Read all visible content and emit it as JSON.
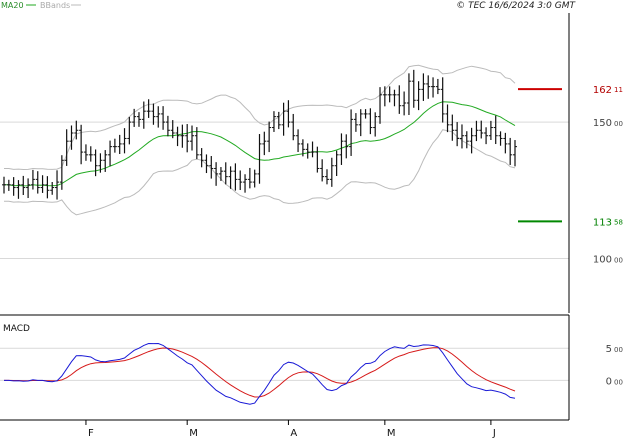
{
  "header": {
    "legend_ma": "MA20",
    "legend_bb": "BBands",
    "copyright": "© TEC 16/6/2024 3:0 GMT"
  },
  "colors": {
    "ma": "#22aa22",
    "bbands": "#bbbbbb",
    "price_bars": "#111111",
    "macd_line": "#1a1ad6",
    "signal_line": "#d61a1a",
    "resistance": "#cc0000",
    "support": "#008800",
    "grid": "#d9d9d9"
  },
  "chart_data": [
    {
      "type": "ohlc",
      "panel": "price",
      "y_ticks": [
        {
          "value": 150,
          "int": "150",
          "dec": "00"
        },
        {
          "value": 100,
          "int": "100",
          "dec": "00"
        }
      ],
      "ylim": [
        80,
        190
      ],
      "levels": [
        {
          "name": "resistance",
          "value": 162.11,
          "int": "162",
          "dec": "11"
        },
        {
          "name": "support",
          "value": 113.58,
          "int": "113",
          "dec": "58"
        }
      ],
      "x_labels": [
        {
          "label": "F",
          "index": 17
        },
        {
          "label": "M",
          "index": 38
        },
        {
          "label": "A",
          "index": 59
        },
        {
          "label": "M",
          "index": 79
        },
        {
          "label": "J",
          "index": 101
        }
      ],
      "close": [
        127,
        127,
        126,
        127,
        126,
        127,
        129,
        126,
        127,
        125,
        126,
        128,
        136,
        143,
        146,
        147,
        139,
        138,
        138,
        134,
        136,
        138,
        141,
        141,
        142,
        144,
        150,
        152,
        151,
        154,
        154,
        152,
        153,
        150,
        147,
        146,
        145,
        145,
        143,
        145,
        138,
        136,
        134,
        133,
        131,
        132,
        130,
        132,
        129,
        128,
        129,
        128,
        131,
        142,
        143,
        148,
        152,
        149,
        154,
        150,
        145,
        142,
        140,
        139,
        139,
        133,
        130,
        129,
        134,
        138,
        143,
        141,
        151,
        149,
        153,
        153,
        148,
        152,
        160,
        160,
        160,
        160,
        156,
        157,
        165,
        158,
        162,
        164,
        163,
        163,
        162,
        153,
        149,
        147,
        144,
        145,
        143,
        145,
        147,
        146,
        145,
        148,
        145,
        144,
        142,
        138,
        141
      ]
    },
    {
      "type": "line",
      "panel": "macd",
      "title": "MACD",
      "y_ticks": [
        {
          "value": 5,
          "int": "5",
          "dec": "00"
        },
        {
          "value": 0,
          "int": "0",
          "dec": "00"
        }
      ],
      "ylim": [
        -6,
        10
      ]
    }
  ]
}
